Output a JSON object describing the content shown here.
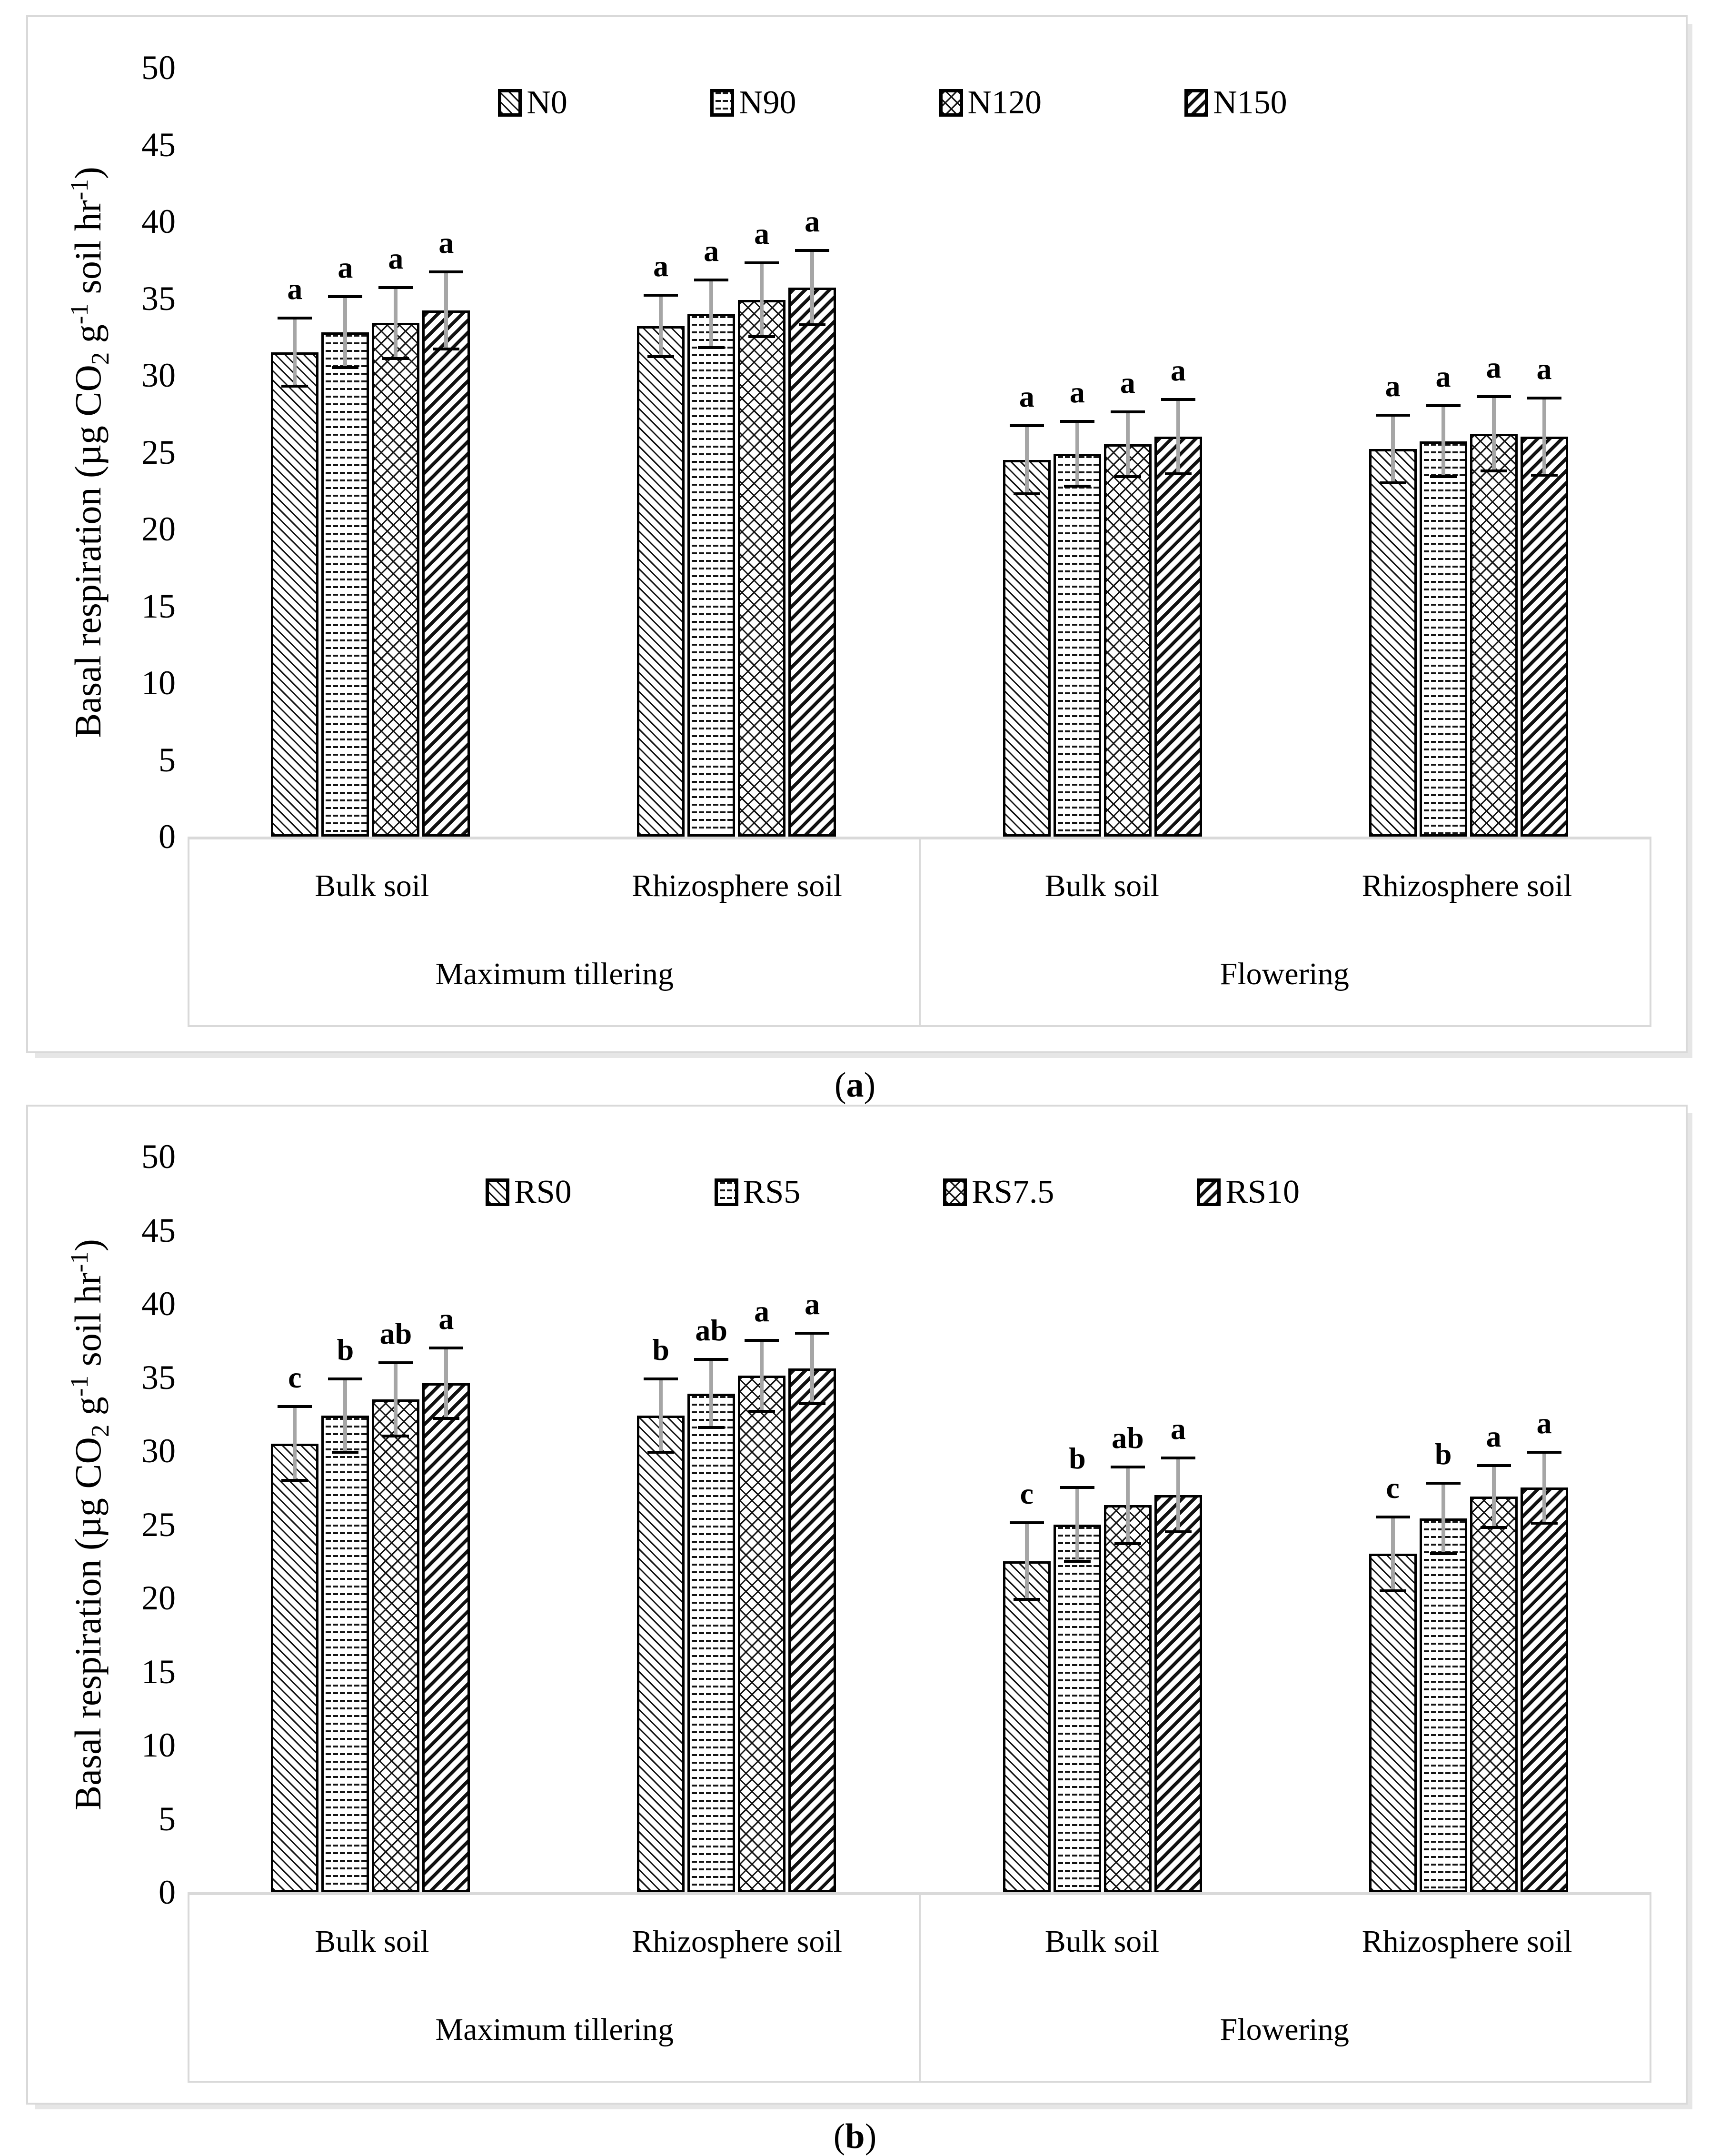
{
  "colors": {
    "bar_fill": "#ffffff",
    "bar_stroke": "#000000",
    "error_stem": "#a6a6a6",
    "error_cap": "#000000",
    "frame_gray": "#d9d9d9",
    "text": "#000000"
  },
  "axis": {
    "label_segments": [
      {
        "t": "Basal respiration (µg CO",
        "s": "n"
      },
      {
        "t": "2",
        "s": "sub"
      },
      {
        "t": " g",
        "s": "n"
      },
      {
        "t": "-1",
        "s": "sup"
      },
      {
        "t": " soil hr",
        "s": "n"
      },
      {
        "t": "-1",
        "s": "sup"
      },
      {
        "t": ")",
        "s": "n"
      }
    ],
    "ticks": [
      0,
      5,
      10,
      15,
      20,
      25,
      30,
      35,
      40,
      45,
      50
    ],
    "max": 50
  },
  "captions": [
    {
      "open": "(",
      "letter": "a",
      "close": ")"
    },
    {
      "open": "(",
      "letter": "b",
      "close": ")"
    }
  ],
  "chart_data": [
    {
      "id": "a",
      "type": "bar",
      "title": "",
      "ylabel": "Basal respiration (µg CO2 g-1 soil hr-1)",
      "ylim": [
        0,
        50
      ],
      "yticks": [
        0,
        5,
        10,
        15,
        20,
        25,
        30,
        35,
        40,
        45,
        50
      ],
      "grid": false,
      "legend_position": "top-center",
      "series": [
        {
          "name": "N0",
          "pattern": "diagonal-down-fine"
        },
        {
          "name": "N90",
          "pattern": "horizontal-wavy-dash"
        },
        {
          "name": "N120",
          "pattern": "diamond-crosshatch"
        },
        {
          "name": "N150",
          "pattern": "diagonal-up-bold"
        }
      ],
      "stage_labels": [
        "Maximum tillering",
        "Flowering"
      ],
      "soil_labels": [
        "Bulk soil",
        "Rhizosphere soil",
        "Bulk soil",
        "Rhizosphere soil"
      ],
      "groups": [
        {
          "stage": "Maximum tillering",
          "soil": "Bulk soil",
          "values": [
            31.5,
            32.8,
            33.4,
            34.2
          ],
          "errors": [
            2.3,
            2.4,
            2.4,
            2.6
          ],
          "letters": [
            "a",
            "a",
            "a",
            "a"
          ]
        },
        {
          "stage": "Maximum tillering",
          "soil": "Rhizosphere soil",
          "values": [
            33.2,
            34.0,
            34.9,
            35.7
          ],
          "errors": [
            2.1,
            2.3,
            2.5,
            2.5
          ],
          "letters": [
            "a",
            "a",
            "a",
            "a"
          ]
        },
        {
          "stage": "Flowering",
          "soil": "Bulk soil",
          "values": [
            24.5,
            24.9,
            25.5,
            26.0
          ],
          "errors": [
            2.3,
            2.2,
            2.2,
            2.5
          ],
          "letters": [
            "a",
            "a",
            "a",
            "a"
          ]
        },
        {
          "stage": "Flowering",
          "soil": "Rhizosphere soil",
          "values": [
            25.2,
            25.7,
            26.2,
            26.0
          ],
          "errors": [
            2.3,
            2.4,
            2.5,
            2.6
          ],
          "letters": [
            "a",
            "a",
            "a",
            "a"
          ]
        }
      ]
    },
    {
      "id": "b",
      "type": "bar",
      "title": "",
      "ylabel": "Basal respiration (µg CO2 g-1 soil hr-1)",
      "ylim": [
        0,
        50
      ],
      "yticks": [
        0,
        5,
        10,
        15,
        20,
        25,
        30,
        35,
        40,
        45,
        50
      ],
      "grid": false,
      "legend_position": "top-center",
      "series": [
        {
          "name": "RS0",
          "pattern": "diagonal-down-fine"
        },
        {
          "name": "RS5",
          "pattern": "horizontal-wavy-dash"
        },
        {
          "name": "RS7.5",
          "pattern": "diamond-crosshatch"
        },
        {
          "name": "RS10",
          "pattern": "diagonal-up-bold"
        }
      ],
      "stage_labels": [
        "Maximum tillering",
        "Flowering"
      ],
      "soil_labels": [
        "Bulk soil",
        "Rhizosphere soil",
        "Bulk soil",
        "Rhizosphere soil"
      ],
      "groups": [
        {
          "stage": "Maximum tillering",
          "soil": "Bulk soil",
          "values": [
            30.5,
            32.4,
            33.5,
            34.6
          ],
          "errors": [
            2.6,
            2.6,
            2.6,
            2.5
          ],
          "letters": [
            "c",
            "b",
            "ab",
            "a"
          ]
        },
        {
          "stage": "Maximum tillering",
          "soil": "Rhizosphere soil",
          "values": [
            32.4,
            33.9,
            35.1,
            35.6
          ],
          "errors": [
            2.6,
            2.4,
            2.5,
            2.5
          ],
          "letters": [
            "b",
            "ab",
            "a",
            "a"
          ]
        },
        {
          "stage": "Flowering",
          "soil": "Bulk soil",
          "values": [
            22.5,
            25.0,
            26.3,
            27.0
          ],
          "errors": [
            2.7,
            2.6,
            2.7,
            2.6
          ],
          "letters": [
            "c",
            "b",
            "ab",
            "a"
          ]
        },
        {
          "stage": "Flowering",
          "soil": "Rhizosphere soil",
          "values": [
            23.0,
            25.4,
            26.9,
            27.5
          ],
          "errors": [
            2.6,
            2.5,
            2.2,
            2.5
          ],
          "letters": [
            "c",
            "b",
            "a",
            "a"
          ]
        }
      ]
    }
  ]
}
